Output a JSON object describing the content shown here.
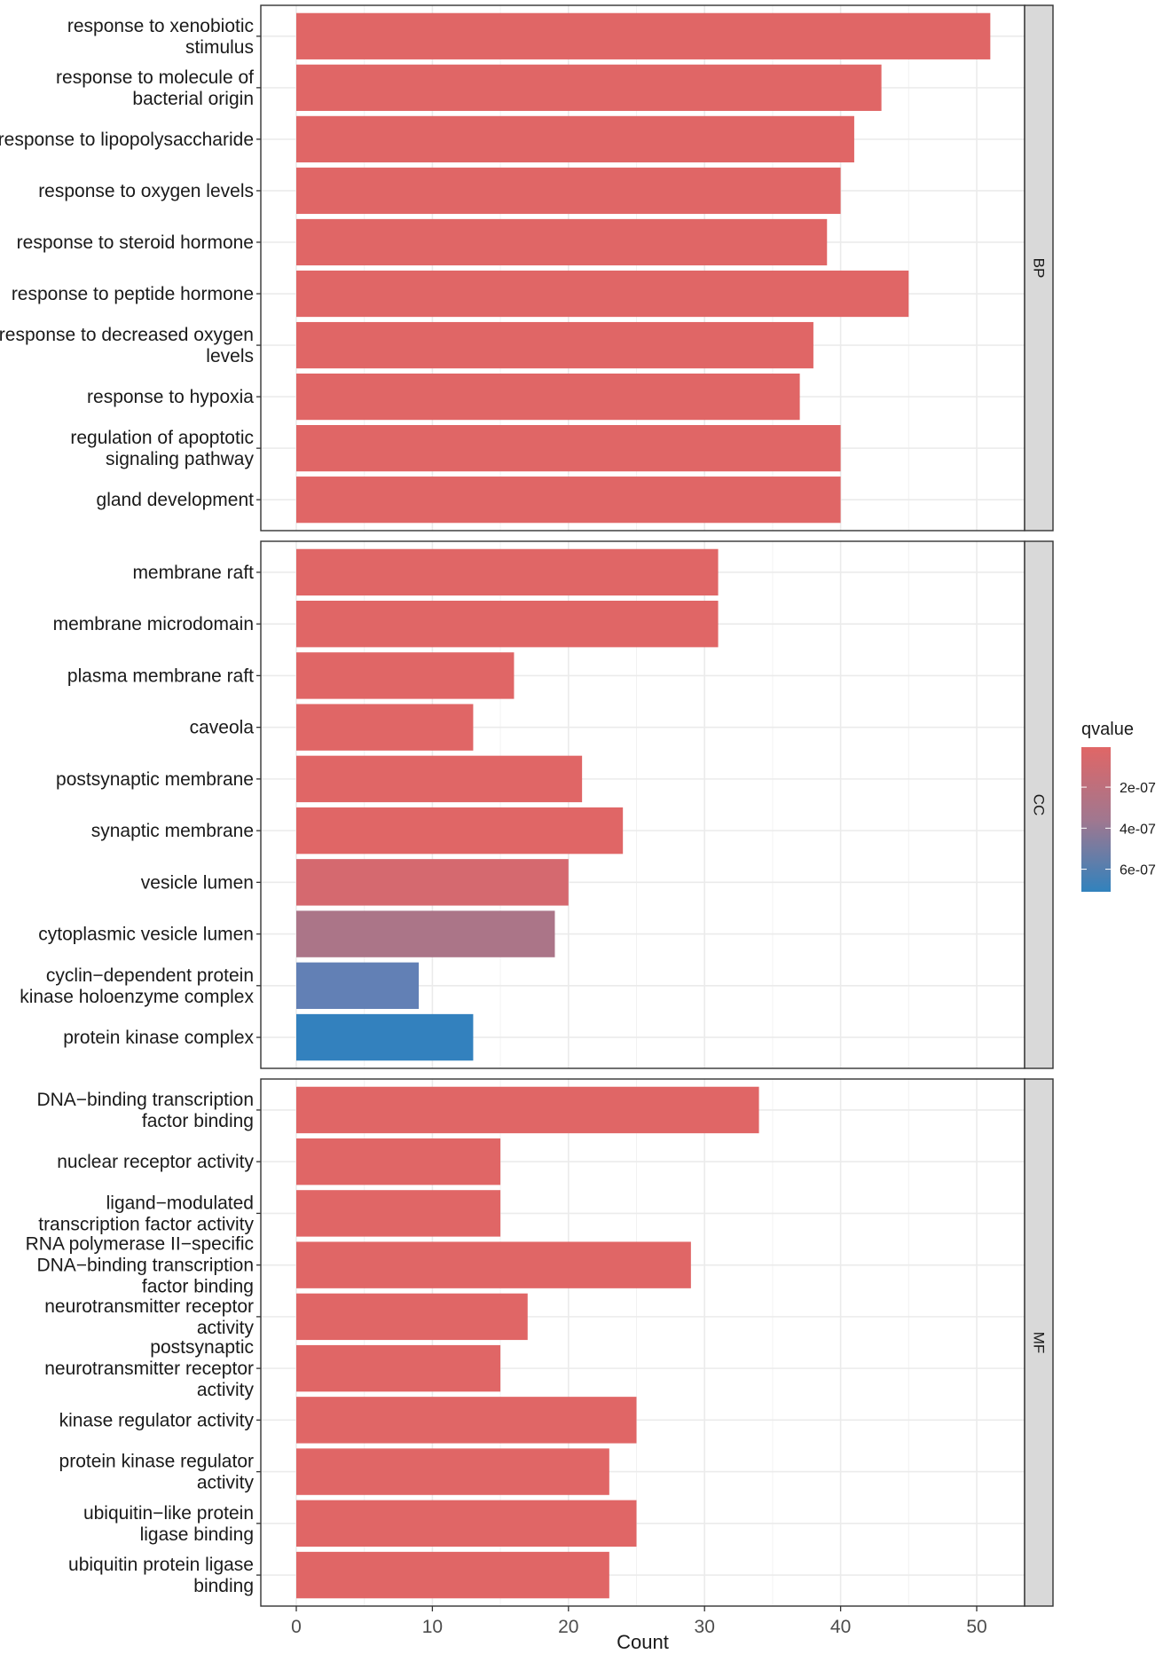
{
  "chart_data": {
    "type": "bar",
    "orientation": "horizontal",
    "xlabel": "Count",
    "xlim": [
      -2.5,
      56
    ],
    "x_ticks": [
      0,
      10,
      20,
      30,
      40,
      50
    ],
    "grid": true,
    "legend": {
      "title": "qvalue",
      "placement": "right",
      "ticks": [
        "2e-07",
        "4e-07",
        "6e-07"
      ],
      "tick_values": [
        2e-07,
        4e-07,
        6e-07
      ],
      "range": [
        5e-09,
        7.1e-07
      ],
      "low_color": "#E06666",
      "high_color": "#3182BD"
    },
    "facets": [
      {
        "name": "BP",
        "bars": [
          {
            "label": [
              "response to xenobiotic",
              "stimulus"
            ],
            "count": 51,
            "qvalue": 1e-09,
            "color": "#E06666"
          },
          {
            "label": [
              "response to molecule of",
              "bacterial origin"
            ],
            "count": 43,
            "qvalue": 1e-09,
            "color": "#E06666"
          },
          {
            "label": [
              "response to lipopolysaccharide"
            ],
            "count": 41,
            "qvalue": 1e-09,
            "color": "#E06666"
          },
          {
            "label": [
              "response to oxygen levels"
            ],
            "count": 40,
            "qvalue": 1e-09,
            "color": "#E06666"
          },
          {
            "label": [
              "response to steroid hormone"
            ],
            "count": 39,
            "qvalue": 1e-09,
            "color": "#E06666"
          },
          {
            "label": [
              "response to peptide hormone"
            ],
            "count": 45,
            "qvalue": 1e-09,
            "color": "#E06666"
          },
          {
            "label": [
              "response to decreased oxygen",
              "levels"
            ],
            "count": 38,
            "qvalue": 1e-09,
            "color": "#E06666"
          },
          {
            "label": [
              "response to hypoxia"
            ],
            "count": 37,
            "qvalue": 1e-09,
            "color": "#E06666"
          },
          {
            "label": [
              "regulation of apoptotic",
              "signaling pathway"
            ],
            "count": 40,
            "qvalue": 1e-09,
            "color": "#E06666"
          },
          {
            "label": [
              "gland development"
            ],
            "count": 40,
            "qvalue": 1e-09,
            "color": "#E06666"
          }
        ]
      },
      {
        "name": "CC",
        "bars": [
          {
            "label": [
              "membrane raft"
            ],
            "count": 31,
            "qvalue": 1e-09,
            "color": "#E06666"
          },
          {
            "label": [
              "membrane microdomain"
            ],
            "count": 31,
            "qvalue": 1e-09,
            "color": "#E06666"
          },
          {
            "label": [
              "plasma membrane raft"
            ],
            "count": 16,
            "qvalue": 1e-09,
            "color": "#E06666"
          },
          {
            "label": [
              "caveola"
            ],
            "count": 13,
            "qvalue": 1e-09,
            "color": "#E06666"
          },
          {
            "label": [
              "postsynaptic membrane"
            ],
            "count": 21,
            "qvalue": 1e-09,
            "color": "#E06666"
          },
          {
            "label": [
              "synaptic membrane"
            ],
            "count": 24,
            "qvalue": 1e-09,
            "color": "#E06666"
          },
          {
            "label": [
              "vesicle lumen"
            ],
            "count": 20,
            "qvalue": 1e-07,
            "color": "#D5696F"
          },
          {
            "label": [
              "cytoplasmic vesicle lumen"
            ],
            "count": 19,
            "qvalue": 3.5e-07,
            "color": "#AB7588"
          },
          {
            "label": [
              "cyclin−dependent protein",
              "kinase holoenzyme complex"
            ],
            "count": 9,
            "qvalue": 5.8e-07,
            "color": "#6280B5"
          },
          {
            "label": [
              "protein kinase complex"
            ],
            "count": 13,
            "qvalue": 7.1e-07,
            "color": "#3381BE"
          }
        ]
      },
      {
        "name": "MF",
        "bars": [
          {
            "label": [
              "DNA−binding transcription",
              "factor binding"
            ],
            "count": 34,
            "qvalue": 1e-09,
            "color": "#E06666"
          },
          {
            "label": [
              "nuclear receptor activity"
            ],
            "count": 15,
            "qvalue": 1e-09,
            "color": "#E06666"
          },
          {
            "label": [
              "ligand−modulated",
              "transcription factor activity"
            ],
            "count": 15,
            "qvalue": 1e-09,
            "color": "#E06666"
          },
          {
            "label": [
              "RNA polymerase II−specific",
              "DNA−binding transcription",
              "factor binding"
            ],
            "count": 29,
            "qvalue": 1e-09,
            "color": "#E06666"
          },
          {
            "label": [
              "neurotransmitter receptor",
              "activity"
            ],
            "count": 17,
            "qvalue": 1e-09,
            "color": "#E06666"
          },
          {
            "label": [
              "postsynaptic",
              "neurotransmitter receptor",
              "activity"
            ],
            "count": 15,
            "qvalue": 1e-09,
            "color": "#E06666"
          },
          {
            "label": [
              "kinase regulator activity"
            ],
            "count": 25,
            "qvalue": 1e-09,
            "color": "#E06666"
          },
          {
            "label": [
              "protein kinase regulator",
              "activity"
            ],
            "count": 23,
            "qvalue": 1e-09,
            "color": "#E06666"
          },
          {
            "label": [
              "ubiquitin−like protein",
              "ligase binding"
            ],
            "count": 25,
            "qvalue": 1e-09,
            "color": "#E06666"
          },
          {
            "label": [
              "ubiquitin protein ligase",
              "binding"
            ],
            "count": 23,
            "qvalue": 1e-09,
            "color": "#E06666"
          }
        ]
      }
    ]
  }
}
